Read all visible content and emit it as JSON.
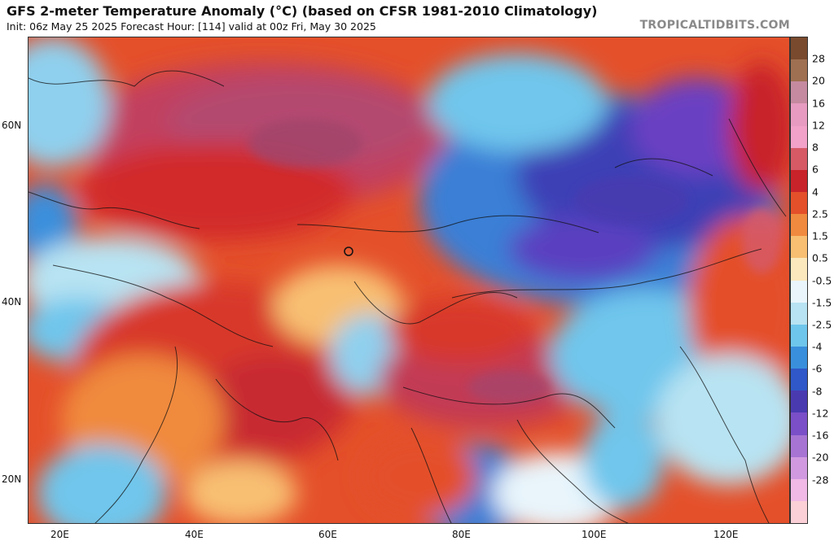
{
  "header": {
    "title": "GFS 2-meter Temperature Anomaly (°C) (based on CFSR 1981-2010 Climatology)",
    "subtitle": "Init: 06z May 25 2025   Forecast Hour: [114]   valid at 00z Fri, May 30 2025",
    "watermark": "TROPICALTIDBITS.COM"
  },
  "map": {
    "lat_labels": [
      "60N",
      "40N",
      "20N"
    ],
    "lon_labels": [
      "20E",
      "40E",
      "60E",
      "80E",
      "100E",
      "120E"
    ]
  },
  "colorbar": {
    "labels": [
      "28",
      "20",
      "16",
      "12",
      "8",
      "6",
      "4",
      "2.5",
      "1.5",
      "0.5",
      "-0.5",
      "-1.5",
      "-2.5",
      "-4",
      "-6",
      "-8",
      "-12",
      "-16",
      "-20",
      "-28"
    ],
    "colors": [
      "#7a4a2e",
      "#a07052",
      "#c58aa0",
      "#e79bc0",
      "#f2a1c8",
      "#d65a66",
      "#c8232a",
      "#e4502a",
      "#f08a3e",
      "#f8bf72",
      "#fbe8bd",
      "#e9f5fb",
      "#b8e3f2",
      "#6fc6ec",
      "#3a8fdc",
      "#3058c8",
      "#4a3ab0",
      "#7a4fc8",
      "#a774d4",
      "#d19ae0",
      "#f0b9e6",
      "#fbd0d6"
    ]
  },
  "colors": {
    "warm_strong": "#b43a5a",
    "warm": "#d8382c",
    "warm_light": "#f08a3e",
    "neutral": "#fbe8bd",
    "cool_light": "#8fd0ee",
    "cool": "#3a7fd6",
    "cold": "#3d3fb5",
    "coldest": "#6a40c2"
  }
}
